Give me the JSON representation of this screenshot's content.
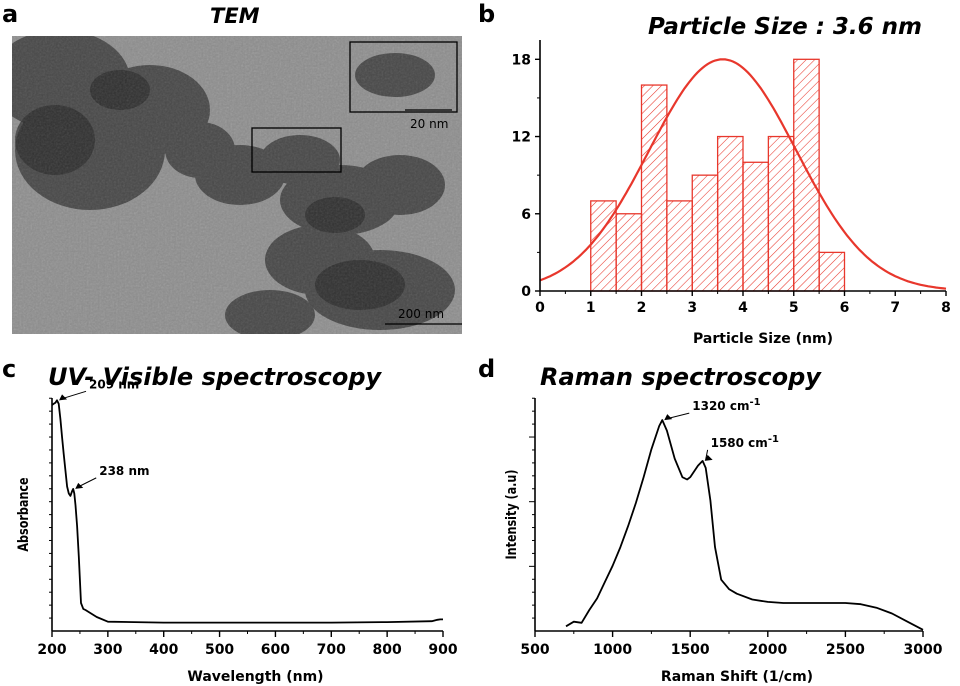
{
  "panels": {
    "a": {
      "letter": "a",
      "title": "TEM",
      "inset_scale": "20 nm",
      "scale": "200 nm"
    },
    "b": {
      "letter": "b",
      "title": "Particle Size : 3.6 nm"
    },
    "c": {
      "letter": "c",
      "title": "UV- Visible spectroscopy"
    },
    "d": {
      "letter": "d",
      "title": "Raman spectroscopy"
    }
  },
  "colors": {
    "histogram": "#e8372c",
    "line": "#000000",
    "tem_bg": "#8c8c8c"
  },
  "chart_data": [
    {
      "id": "b",
      "type": "bar",
      "title": "Particle Size : 3.6 nm",
      "xlabel": "Particle Size (nm)",
      "ylabel": "",
      "xlim": [
        0,
        8
      ],
      "ylim": [
        0,
        19.5
      ],
      "xticks": [
        "0",
        "1",
        "2",
        "3",
        "4",
        "5",
        "6",
        "7",
        "8"
      ],
      "yticks": [
        "0",
        "6",
        "12",
        "18"
      ],
      "bins": [
        {
          "x0": 1.0,
          "x1": 1.5,
          "count": 7
        },
        {
          "x0": 1.5,
          "x1": 2.0,
          "count": 6
        },
        {
          "x0": 2.0,
          "x1": 2.5,
          "count": 16
        },
        {
          "x0": 2.5,
          "x1": 3.0,
          "count": 7
        },
        {
          "x0": 3.0,
          "x1": 3.5,
          "count": 9
        },
        {
          "x0": 3.5,
          "x1": 4.0,
          "count": 12
        },
        {
          "x0": 4.0,
          "x1": 4.5,
          "count": 10
        },
        {
          "x0": 4.5,
          "x1": 5.0,
          "count": 12
        },
        {
          "x0": 5.0,
          "x1": 5.5,
          "count": 18
        },
        {
          "x0": 5.5,
          "x1": 6.0,
          "count": 3
        }
      ],
      "fit": {
        "type": "gaussian",
        "mean": 3.6,
        "sd": 1.45,
        "peak": 18
      }
    },
    {
      "id": "c",
      "type": "line",
      "title": "UV- Visible spectroscopy",
      "xlabel": "Wavelength (nm)",
      "ylabel": "Absorbance",
      "xlim": [
        200,
        900
      ],
      "ylim": [
        0,
        10
      ],
      "xticks": [
        "200",
        "300",
        "400",
        "500",
        "600",
        "700",
        "800",
        "900"
      ],
      "x": [
        200,
        203,
        206,
        209,
        212,
        215,
        218,
        221,
        224,
        227,
        230,
        233,
        236,
        238,
        240,
        242,
        245,
        248,
        252,
        256,
        260,
        270,
        280,
        300,
        400,
        500,
        600,
        700,
        800,
        880,
        890,
        895,
        900
      ],
      "y": [
        9.7,
        9.75,
        9.8,
        9.9,
        9.75,
        9.1,
        8.3,
        7.6,
        6.9,
        6.2,
        5.9,
        5.8,
        6.0,
        6.1,
        5.9,
        5.4,
        4.5,
        3.2,
        1.2,
        0.95,
        0.9,
        0.75,
        0.6,
        0.4,
        0.36,
        0.36,
        0.36,
        0.36,
        0.38,
        0.42,
        0.48,
        0.5,
        0.5
      ],
      "annotations": [
        {
          "label": "209 nm",
          "x": 209,
          "y": 9.9
        },
        {
          "label": "238 nm",
          "x": 238,
          "y": 6.1
        }
      ]
    },
    {
      "id": "d",
      "type": "line",
      "title": "Raman spectroscopy",
      "xlabel": "Raman Shift (1/cm)",
      "ylabel": "Intensity (a.u)",
      "xlim": [
        500,
        3000
      ],
      "ylim": [
        0,
        10
      ],
      "xticks": [
        "500",
        "1000",
        "1500",
        "2000",
        "2500",
        "3000"
      ],
      "x": [
        700,
        750,
        800,
        850,
        900,
        950,
        1000,
        1050,
        1100,
        1150,
        1200,
        1250,
        1300,
        1320,
        1350,
        1400,
        1450,
        1480,
        1500,
        1550,
        1580,
        1600,
        1630,
        1660,
        1700,
        1750,
        1800,
        1900,
        2000,
        2100,
        2200,
        2300,
        2400,
        2500,
        2600,
        2700,
        2800,
        2900,
        3000
      ],
      "y": [
        0.2,
        0.4,
        0.35,
        0.9,
        1.4,
        2.1,
        2.8,
        3.6,
        4.5,
        5.5,
        6.6,
        7.8,
        8.8,
        9.05,
        8.6,
        7.4,
        6.6,
        6.5,
        6.6,
        7.1,
        7.3,
        7.0,
        5.6,
        3.6,
        2.2,
        1.8,
        1.6,
        1.35,
        1.25,
        1.2,
        1.2,
        1.2,
        1.2,
        1.2,
        1.15,
        1.0,
        0.75,
        0.4,
        0.05
      ],
      "annotations": [
        {
          "label": "1320 cm",
          "sup": "-1",
          "x": 1320,
          "y": 9.05
        },
        {
          "label": "1580 cm",
          "sup": "-1",
          "x": 1580,
          "y": 7.3
        }
      ]
    }
  ]
}
